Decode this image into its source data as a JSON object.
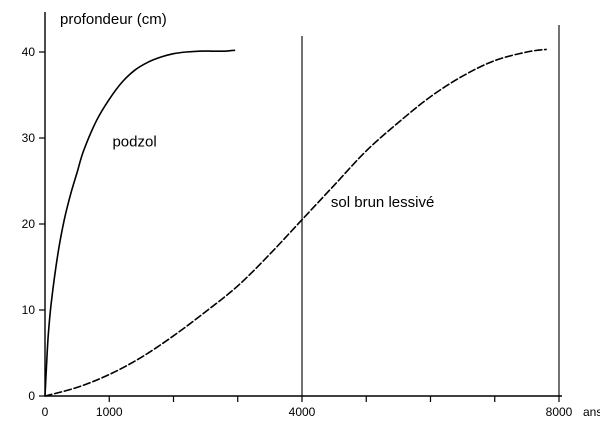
{
  "chart_data": {
    "type": "line",
    "title": "",
    "ylabel": "profondeur (cm)",
    "xlabel": "ans",
    "xlim": [
      0,
      8000
    ],
    "ylim": [
      0,
      40
    ],
    "x_ticks": [
      0,
      1000,
      2000,
      3000,
      4000,
      5000,
      6000,
      7000,
      8000
    ],
    "x_tick_labels": [
      "0",
      "1000",
      "",
      "",
      "4000",
      "",
      "",
      "",
      "8000"
    ],
    "y_ticks": [
      0,
      10,
      20,
      30,
      40
    ],
    "y_tick_labels": [
      "0",
      "10",
      "20",
      "30",
      "40"
    ],
    "vertical_reference_lines": [
      4000,
      8000
    ],
    "grid": false,
    "legend": "none",
    "series": [
      {
        "name": "podzol",
        "style": "solid",
        "color": "#000000",
        "x": [
          0,
          20,
          50,
          100,
          200,
          300,
          400,
          500,
          600,
          800,
          1000,
          1200,
          1400,
          1600,
          1800,
          2000,
          2200,
          2400,
          2600,
          2800,
          2950
        ],
        "y": [
          0,
          3,
          7,
          11,
          16.5,
          20.5,
          23.5,
          26,
          28.5,
          32,
          34.5,
          36.5,
          37.9,
          38.8,
          39.4,
          39.8,
          40,
          40.1,
          40.1,
          40.1,
          40.2
        ]
      },
      {
        "name": "sol brun lessivé",
        "style": "dashed",
        "color": "#000000",
        "x": [
          0,
          500,
          1000,
          1500,
          2000,
          2500,
          3000,
          3500,
          4000,
          4500,
          5000,
          5500,
          6000,
          6500,
          7000,
          7500,
          7800
        ],
        "y": [
          0,
          1,
          2.5,
          4.5,
          7,
          9.8,
          12.8,
          16.5,
          20.5,
          24.5,
          28.5,
          31.8,
          34.8,
          37.2,
          39,
          40,
          40.3
        ]
      }
    ],
    "series_label_positions": [
      {
        "series": "podzol",
        "x": 1050,
        "y": 29
      },
      {
        "series": "sol brun lessivé",
        "x": 4450,
        "y": 22
      }
    ],
    "corner_label": "0",
    "x_axis_unit": "ans"
  }
}
